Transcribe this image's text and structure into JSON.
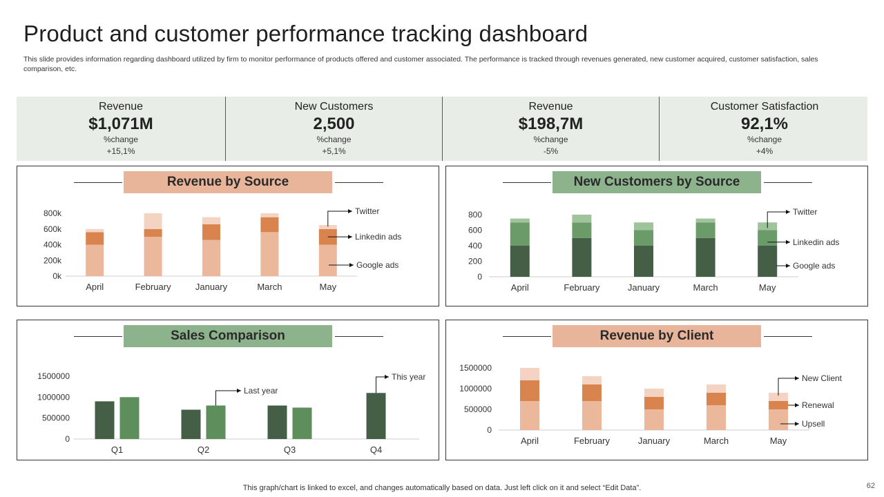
{
  "header": {
    "title": "Product and customer performance tracking dashboard",
    "subtitle": "This slide provides information regarding dashboard utilized by firm to  monitor performance of products offered and customer associated. The performance is tracked through revenues generated, new customer acquired, customer satisfaction, sales comparison, etc."
  },
  "kpis": [
    {
      "label": "Revenue",
      "value": "$1,071M",
      "change_label": "%change",
      "change": "+15,1%"
    },
    {
      "label": "New Customers",
      "value": "2,500",
      "change_label": "%change",
      "change": "+5,1%"
    },
    {
      "label": "Revenue",
      "value": "$198,7M",
      "change_label": "%change",
      "change": "-5%"
    },
    {
      "label": "Customer Satisfaction",
      "value": "92,1%",
      "change_label": "%change",
      "change": "+4%"
    }
  ],
  "panels": {
    "revenue_by_source": "Revenue by Source",
    "new_customers_by_source": "New Customers by Source",
    "sales_comparison": "Sales Comparison",
    "revenue_by_client": "Revenue by Client"
  },
  "colors": {
    "orange_light": "#f4d3c2",
    "orange_mid": "#d9834f",
    "orange_base": "#ebb89c",
    "green_light": "#9fc39a",
    "green_mid": "#6a9b68",
    "green_dark": "#445f45",
    "green_bar": "#5f8e5d",
    "title_orange": "#e8b49a",
    "title_green": "#8db38c",
    "kpi_bg": "#e9ede8"
  },
  "chart_data": [
    {
      "type": "bar",
      "stacked": true,
      "title": "Revenue by Source",
      "categories": [
        "April",
        "February",
        "January",
        "March",
        "May"
      ],
      "ylim": [
        0,
        800000
      ],
      "yticks": [
        "0k",
        "200k",
        "400k",
        "600k",
        "800k"
      ],
      "series": [
        {
          "name": "Google ads",
          "values": [
            400000,
            500000,
            460000,
            560000,
            400000
          ]
        },
        {
          "name": "Linkedin ads",
          "values": [
            160000,
            100000,
            200000,
            190000,
            200000
          ]
        },
        {
          "name": "Twitter",
          "values": [
            40000,
            200000,
            90000,
            50000,
            50000
          ]
        }
      ]
    },
    {
      "type": "bar",
      "stacked": true,
      "title": "New Customers by Source",
      "categories": [
        "April",
        "February",
        "January",
        "March",
        "May"
      ],
      "ylim": [
        0,
        800
      ],
      "yticks": [
        "0",
        "200",
        "400",
        "600",
        "800"
      ],
      "series": [
        {
          "name": "Google ads",
          "values": [
            400,
            500,
            400,
            500,
            400
          ]
        },
        {
          "name": "Linkedin ads",
          "values": [
            300,
            200,
            200,
            200,
            200
          ]
        },
        {
          "name": "Twitter",
          "values": [
            50,
            100,
            100,
            50,
            100
          ]
        }
      ]
    },
    {
      "type": "bar",
      "title": "Sales Comparison",
      "categories": [
        "Q1",
        "Q2",
        "Q3",
        "Q4"
      ],
      "ylim": [
        0,
        1500000
      ],
      "yticks": [
        "0",
        "500000",
        "1000000",
        "1500000"
      ],
      "series": [
        {
          "name": "Last year",
          "values": [
            900000,
            700000,
            800000,
            1100000
          ]
        },
        {
          "name": "This year",
          "values": [
            1000000,
            800000,
            750000,
            null
          ]
        }
      ]
    },
    {
      "type": "bar",
      "stacked": true,
      "title": "Revenue by Client",
      "categories": [
        "April",
        "February",
        "January",
        "March",
        "May"
      ],
      "ylim": [
        0,
        1500000
      ],
      "yticks": [
        "0",
        "500000",
        "1000000",
        "1500000"
      ],
      "series": [
        {
          "name": "Upsell",
          "values": [
            700000,
            700000,
            500000,
            600000,
            500000
          ]
        },
        {
          "name": "Renewal",
          "values": [
            500000,
            400000,
            300000,
            300000,
            200000
          ]
        },
        {
          "name": "New Client",
          "values": [
            300000,
            200000,
            200000,
            200000,
            200000
          ]
        }
      ]
    }
  ],
  "footer": {
    "note": "This graph/chart is linked to excel,  and changes automatically based on data. Just left click on it and select “Edit Data”.",
    "page": "62"
  }
}
